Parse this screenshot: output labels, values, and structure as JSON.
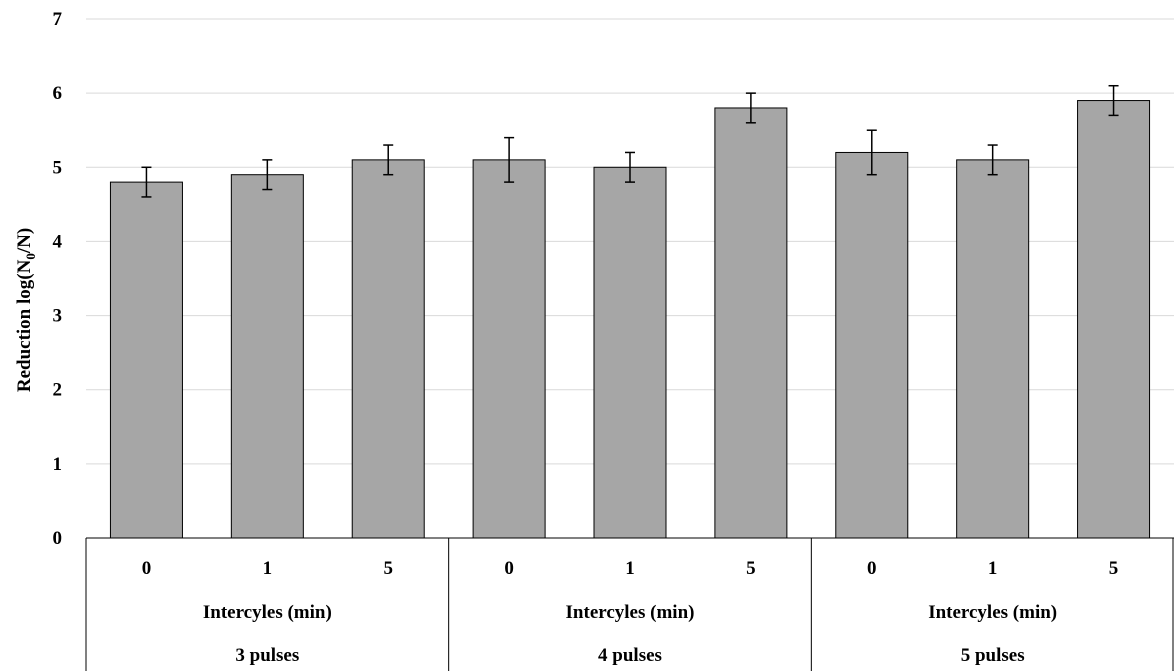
{
  "chart_data": {
    "type": "bar",
    "ylabel_parts": [
      "Reduction log(N",
      "0",
      "/N)"
    ],
    "ylim": [
      0,
      7
    ],
    "yticks": [
      "0",
      "1",
      "2",
      "3",
      "4",
      "5",
      "6",
      "7"
    ],
    "grid": true,
    "bar_color": "#a6a6a6",
    "groups": [
      {
        "label": "3 pulses",
        "sublabel": "Intercyles (min)",
        "categories": [
          "0",
          "1",
          "5"
        ],
        "values": [
          4.8,
          4.9,
          5.1
        ],
        "errors": [
          0.2,
          0.2,
          0.2
        ]
      },
      {
        "label": "4 pulses",
        "sublabel": "Intercyles (min)",
        "categories": [
          "0",
          "1",
          "5"
        ],
        "values": [
          5.1,
          5.0,
          5.8
        ],
        "errors": [
          0.3,
          0.2,
          0.2
        ]
      },
      {
        "label": "5 pulses",
        "sublabel": "Intercyles (min)",
        "categories": [
          "0",
          "1",
          "5"
        ],
        "values": [
          5.2,
          5.1,
          5.9
        ],
        "errors": [
          0.3,
          0.2,
          0.2
        ]
      }
    ]
  }
}
